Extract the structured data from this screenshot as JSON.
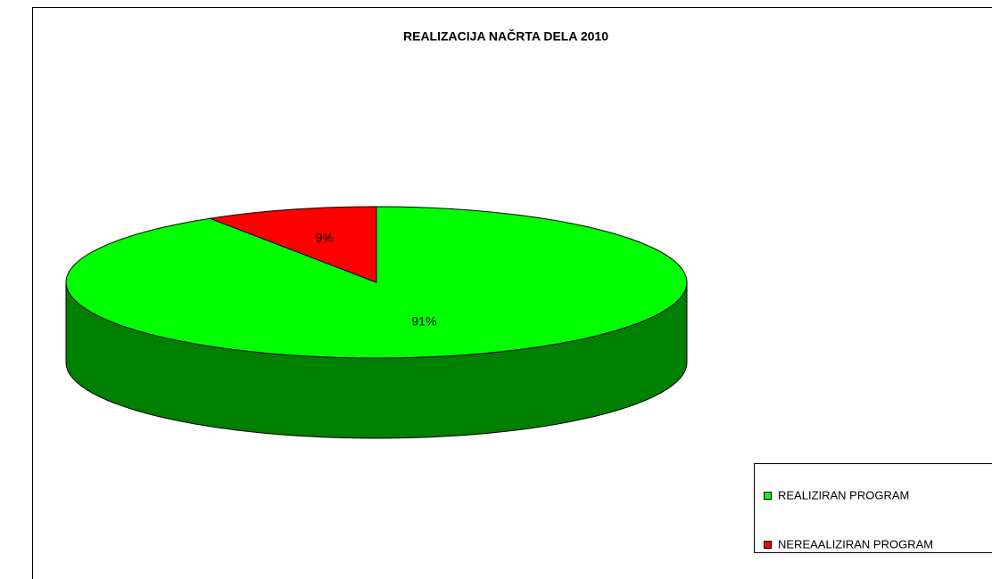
{
  "chart_data": {
    "type": "pie3d",
    "title": "REALIZACIJA NAČRTA DELA 2010",
    "categories": [
      "REALIZIRAN PROGRAM",
      "NEREAALIZIRAN PROGRAM"
    ],
    "values": [
      91,
      9
    ],
    "value_labels": [
      "91%",
      "9%"
    ],
    "colors": [
      "#00ff00",
      "#ff0000"
    ],
    "legend": "right"
  }
}
